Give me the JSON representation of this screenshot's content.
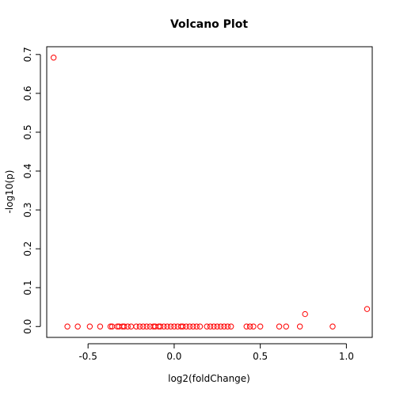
{
  "chart_data": {
    "type": "scatter",
    "title": "Volcano Plot",
    "xlabel": "log2(foldChange)",
    "ylabel": "-log10(p)",
    "xlim": [
      -0.74,
      1.15
    ],
    "ylim": [
      -0.028,
      0.72
    ],
    "xticks": [
      -0.5,
      0.0,
      0.5,
      1.0
    ],
    "xtick_labels": [
      "-0.5",
      "0.0",
      "0.5",
      "1.0"
    ],
    "yticks": [
      0.0,
      0.1,
      0.2,
      0.3,
      0.4,
      0.5,
      0.6,
      0.7
    ],
    "ytick_labels": [
      "0.0",
      "0.1",
      "0.2",
      "0.3",
      "0.4",
      "0.5",
      "0.6",
      "0.7"
    ],
    "grid": false,
    "marker": "open-circle",
    "point_color": "#ff0000",
    "points": [
      {
        "x": -0.7,
        "y": 0.692
      },
      {
        "x": -0.62,
        "y": 0.0
      },
      {
        "x": -0.56,
        "y": 0.0
      },
      {
        "x": -0.49,
        "y": 0.0
      },
      {
        "x": -0.43,
        "y": 0.0
      },
      {
        "x": -0.37,
        "y": 0.0
      },
      {
        "x": -0.36,
        "y": 0.0
      },
      {
        "x": -0.33,
        "y": 0.0
      },
      {
        "x": -0.32,
        "y": 0.0
      },
      {
        "x": -0.3,
        "y": 0.0
      },
      {
        "x": -0.29,
        "y": 0.0
      },
      {
        "x": -0.27,
        "y": 0.0
      },
      {
        "x": -0.25,
        "y": 0.0
      },
      {
        "x": -0.22,
        "y": 0.0
      },
      {
        "x": -0.2,
        "y": 0.0
      },
      {
        "x": -0.18,
        "y": 0.0
      },
      {
        "x": -0.16,
        "y": 0.0
      },
      {
        "x": -0.14,
        "y": 0.0
      },
      {
        "x": -0.12,
        "y": 0.0
      },
      {
        "x": -0.11,
        "y": 0.0
      },
      {
        "x": -0.09,
        "y": 0.0
      },
      {
        "x": -0.08,
        "y": 0.0
      },
      {
        "x": -0.06,
        "y": 0.0
      },
      {
        "x": -0.04,
        "y": 0.0
      },
      {
        "x": -0.02,
        "y": 0.0
      },
      {
        "x": 0.0,
        "y": 0.0
      },
      {
        "x": 0.02,
        "y": 0.0
      },
      {
        "x": 0.04,
        "y": 0.0
      },
      {
        "x": 0.05,
        "y": 0.0
      },
      {
        "x": 0.07,
        "y": 0.0
      },
      {
        "x": 0.09,
        "y": 0.0
      },
      {
        "x": 0.11,
        "y": 0.0
      },
      {
        "x": 0.13,
        "y": 0.0
      },
      {
        "x": 0.15,
        "y": 0.0
      },
      {
        "x": 0.19,
        "y": 0.0
      },
      {
        "x": 0.21,
        "y": 0.0
      },
      {
        "x": 0.23,
        "y": 0.0
      },
      {
        "x": 0.25,
        "y": 0.0
      },
      {
        "x": 0.27,
        "y": 0.0
      },
      {
        "x": 0.29,
        "y": 0.0
      },
      {
        "x": 0.31,
        "y": 0.0
      },
      {
        "x": 0.33,
        "y": 0.0
      },
      {
        "x": 0.42,
        "y": 0.0
      },
      {
        "x": 0.44,
        "y": 0.0
      },
      {
        "x": 0.46,
        "y": 0.0
      },
      {
        "x": 0.5,
        "y": 0.0
      },
      {
        "x": 0.61,
        "y": 0.0
      },
      {
        "x": 0.65,
        "y": 0.0
      },
      {
        "x": 0.73,
        "y": 0.0
      },
      {
        "x": 0.76,
        "y": 0.032
      },
      {
        "x": 0.92,
        "y": 0.0
      },
      {
        "x": 1.12,
        "y": 0.045
      }
    ]
  }
}
